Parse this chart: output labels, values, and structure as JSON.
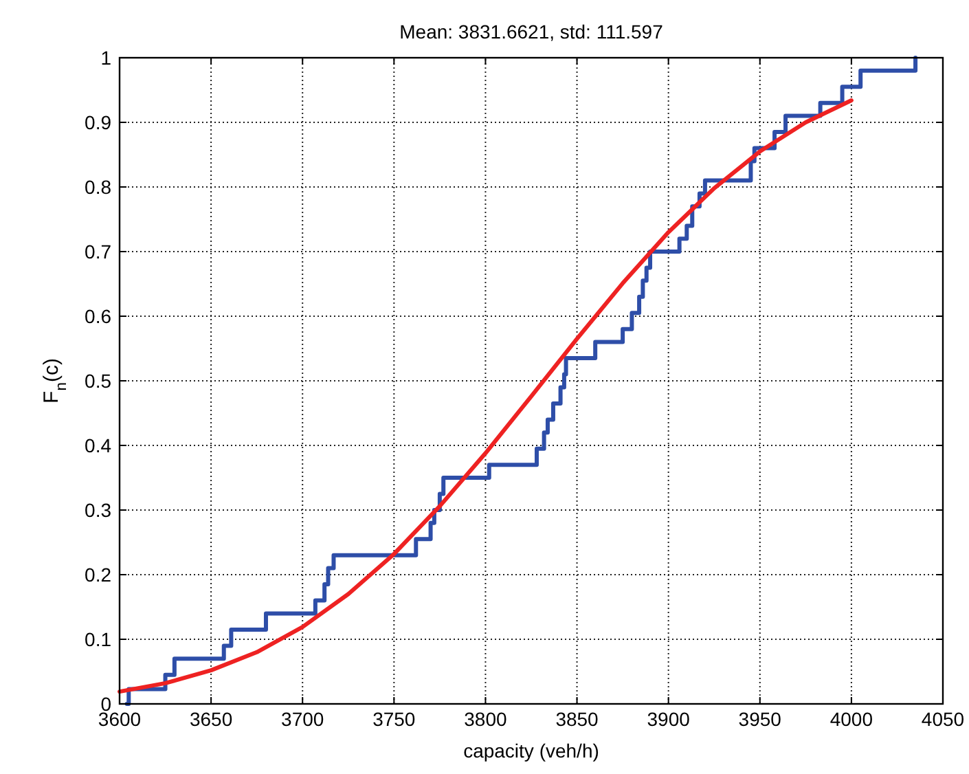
{
  "chart_data": {
    "type": "line",
    "title": "Mean: 3831.6621, std: 111.597",
    "xlabel": "capacity (veh/h)",
    "ylabel": "F$_{n}$(c)",
    "xlim": [
      3600,
      4050
    ],
    "xticks": [
      3600,
      3650,
      3700,
      3750,
      3800,
      3850,
      3900,
      3950,
      4000,
      4050
    ],
    "ylim": [
      0,
      1
    ],
    "yticks": [
      0,
      0.1,
      0.2,
      0.3,
      0.4,
      0.5,
      0.6,
      0.7,
      0.8,
      0.9,
      1
    ],
    "grid": true,
    "series": [
      {
        "type": "step",
        "color": "#2e4ea8",
        "x": [
          3604,
          3605,
          3625,
          3630,
          3657,
          3661,
          3680,
          3707,
          3712,
          3714,
          3717,
          3762,
          3770,
          3772,
          3775,
          3777,
          3802,
          3828,
          3832,
          3834,
          3837,
          3841,
          3843,
          3844,
          3860,
          3875,
          3880,
          3884,
          3886,
          3888,
          3890,
          3906,
          3910,
          3913,
          3917,
          3920,
          3945,
          3947,
          3958,
          3964,
          3983,
          3995,
          4005,
          4035
        ],
        "values": [
          0,
          0.023,
          0.045,
          0.07,
          0.09,
          0.115,
          0.14,
          0.16,
          0.185,
          0.21,
          0.23,
          0.255,
          0.28,
          0.3,
          0.325,
          0.35,
          0.37,
          0.395,
          0.42,
          0.44,
          0.465,
          0.49,
          0.51,
          0.535,
          0.56,
          0.58,
          0.605,
          0.63,
          0.655,
          0.675,
          0.7,
          0.72,
          0.74,
          0.77,
          0.79,
          0.81,
          0.84,
          0.86,
          0.885,
          0.91,
          0.93,
          0.955,
          0.98,
          1
        ]
      },
      {
        "type": "line",
        "color": "#ee2222",
        "x": [
          3600,
          3625,
          3650,
          3675,
          3700,
          3725,
          3750,
          3775,
          3800,
          3825,
          3850,
          3875,
          3900,
          3925,
          3950,
          3975,
          4000
        ],
        "values": [
          0.019,
          0.032,
          0.052,
          0.08,
          0.119,
          0.17,
          0.232,
          0.306,
          0.388,
          0.476,
          0.565,
          0.651,
          0.73,
          0.798,
          0.855,
          0.9,
          0.934
        ]
      }
    ]
  }
}
